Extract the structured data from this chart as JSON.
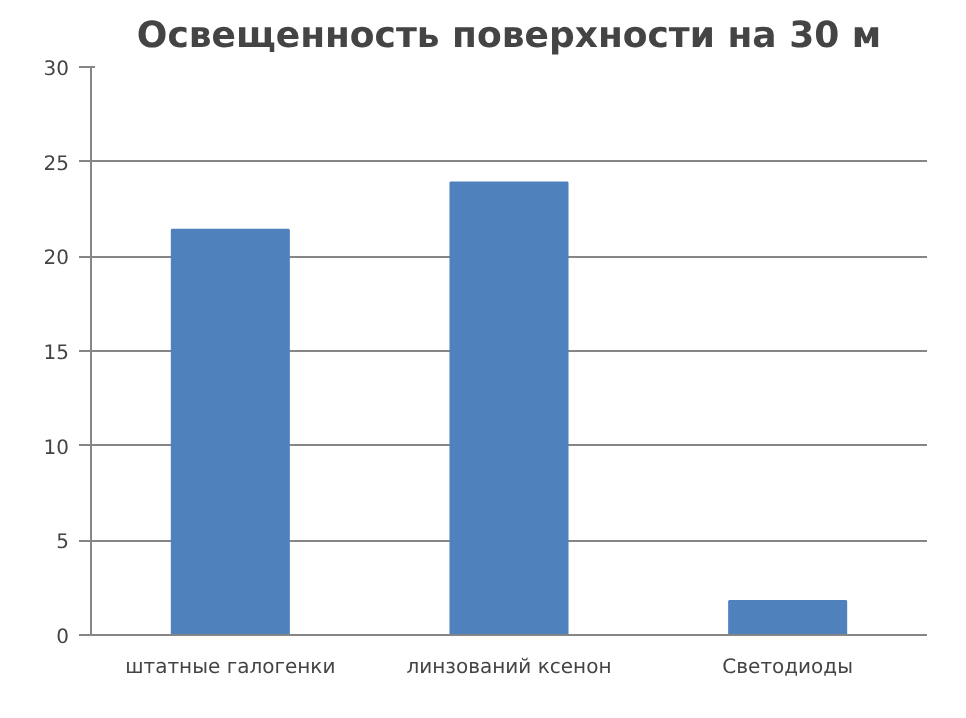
{
  "chart_data": {
    "type": "bar",
    "title": "Освещенность поверхности на 30 м",
    "categories": [
      "штатные галогенки",
      "линзований ксенон",
      "Светодиоды"
    ],
    "values": [
      21.4,
      23.9,
      1.8
    ],
    "color": "#4f81bd",
    "ylim": [
      0,
      30
    ],
    "yticks": [
      0,
      5,
      10,
      15,
      20,
      25,
      30
    ],
    "grid": "y"
  }
}
